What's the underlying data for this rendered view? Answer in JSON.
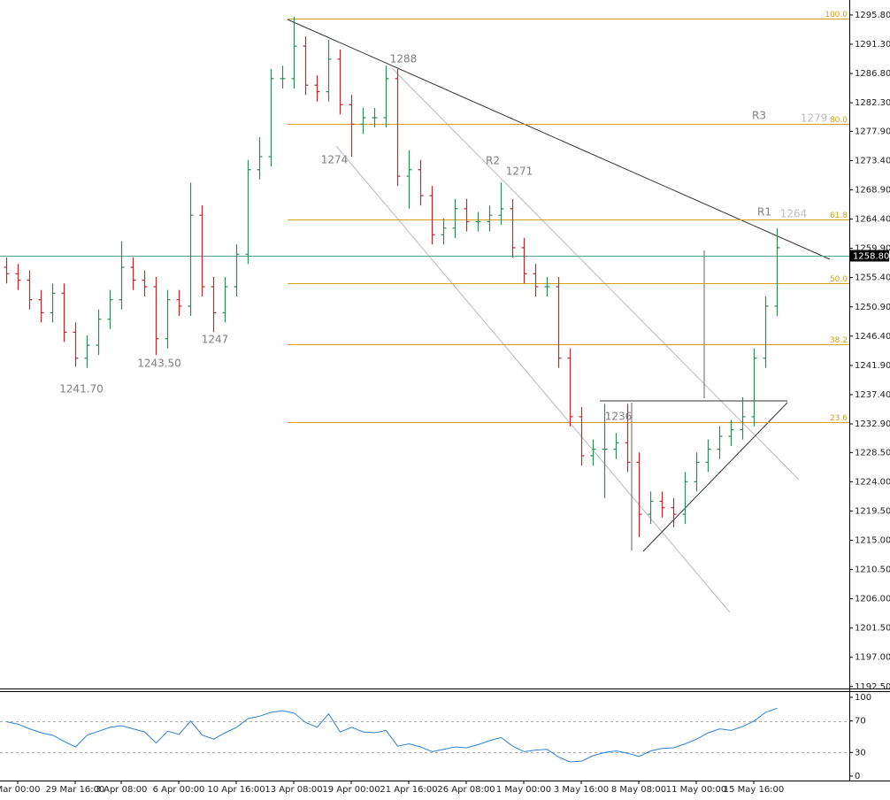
{
  "chart_data": {
    "type": "ohlc",
    "up_color": "#2e8b57",
    "down_color": "#c0282d",
    "categories": [
      null,
      "Mar 00:00",
      null,
      null,
      null,
      null,
      "29 Mar 16:00",
      null,
      null,
      null,
      "3 Apr 08:00",
      null,
      null,
      null,
      null,
      "6 Apr 00:00",
      null,
      null,
      null,
      null,
      "10 Apr 16:00",
      null,
      null,
      null,
      null,
      "13 Apr 08:00",
      null,
      null,
      null,
      null,
      "19 Apr 00:00",
      null,
      null,
      null,
      null,
      "21 Apr 16:00",
      null,
      null,
      null,
      null,
      "26 Apr 08:00",
      null,
      null,
      null,
      null,
      "1 May 00:00",
      null,
      null,
      null,
      null,
      "3 May 16:00",
      null,
      null,
      null,
      null,
      "8 May 08:00",
      null,
      null,
      null,
      null,
      "11 May 00:00",
      null,
      null,
      null,
      null,
      "15 May 16:00",
      null,
      null
    ],
    "open": [
      1257,
      1256,
      1255,
      1252,
      1250,
      1253,
      1247,
      1243,
      1245,
      1249,
      1252,
      1257,
      1255,
      1254,
      1246,
      1252,
      1251,
      1265,
      1254,
      1250,
      1254,
      1259,
      1272,
      1274,
      1286,
      1286,
      1291,
      1285,
      1284,
      1289,
      1282,
      1279,
      1280,
      1280,
      1286,
      1271,
      1272,
      1268,
      1262,
      1263,
      1266,
      1264,
      1264,
      1265,
      1266,
      1260,
      1256,
      1254,
      1254,
      1243,
      1234,
      1228,
      1229,
      1229,
      1230,
      1227,
      1219,
      1221,
      1220,
      1219,
      1224,
      1227,
      1229,
      1231,
      1232,
      1234,
      1243,
      1251
    ],
    "high": [
      1258.5,
      1257.5,
      1256.5,
      1253.5,
      1254.5,
      1254.5,
      1248.5,
      1246.5,
      1250.5,
      1253.5,
      1261,
      1258.5,
      1256.5,
      1255.5,
      1253.5,
      1253.5,
      1270,
      1266.5,
      1255.5,
      1255.5,
      1260.5,
      1273.5,
      1277,
      1287.5,
      1288,
      1295.5,
      1292.5,
      1286.5,
      1292,
      1290.5,
      1283.5,
      1281.5,
      1281.5,
      1288,
      1287.5,
      1275,
      1273.5,
      1269.5,
      1264.5,
      1267.5,
      1267.5,
      1265.5,
      1266.5,
      1270,
      1267.5,
      1261.5,
      1257.5,
      1255.5,
      1255.5,
      1244.5,
      1235.5,
      1230.5,
      1236,
      1231.5,
      1236,
      1228.5,
      1222.5,
      1222.5,
      1221.5,
      1225.5,
      1228.5,
      1230.5,
      1232.5,
      1233.5,
      1237,
      1244.5,
      1252.5,
      1263
    ],
    "low": [
      1254.5,
      1253.5,
      1250.5,
      1248.5,
      1248.5,
      1245.5,
      1241.7,
      1241.5,
      1243.5,
      1247.5,
      1250.5,
      1253.5,
      1252.5,
      1243.5,
      1244.5,
      1249.5,
      1249.5,
      1252.5,
      1247,
      1248.5,
      1252.5,
      1257.5,
      1270.5,
      1272.5,
      1284.5,
      1284.5,
      1283.5,
      1282.5,
      1282.5,
      1280.5,
      1274,
      1277.5,
      1278.5,
      1278.5,
      1269.5,
      1266,
      1266.5,
      1260.5,
      1260.5,
      1261.5,
      1262.5,
      1262.5,
      1262.5,
      1263.5,
      1258.5,
      1254.5,
      1252.5,
      1252.5,
      1241.5,
      1232.5,
      1226.5,
      1226.5,
      1221.5,
      1227.5,
      1225.5,
      1215.5,
      1217.5,
      1218.5,
      1217,
      1217.5,
      1222.5,
      1225.5,
      1227.5,
      1229.5,
      1230.5,
      1232.5,
      1241.5,
      1249.5
    ],
    "close": [
      1256,
      1255,
      1252,
      1250,
      1253,
      1247,
      1243,
      1245,
      1249,
      1252,
      1257,
      1255,
      1254,
      1246,
      1252,
      1251,
      1265,
      1254,
      1250,
      1254,
      1259,
      1272,
      1274,
      1286,
      1286,
      1291,
      1285,
      1284,
      1289,
      1282,
      1279,
      1280,
      1280,
      1286,
      1271,
      1272,
      1268,
      1262,
      1263,
      1266,
      1264,
      1264,
      1265,
      1266,
      1260,
      1256,
      1254,
      1254,
      1243,
      1234,
      1228,
      1229,
      1229,
      1230,
      1227,
      1219,
      1221,
      1220,
      1219,
      1224,
      1227,
      1229,
      1231,
      1232,
      1234,
      1243,
      1251,
      1260
    ],
    "ylim": [
      1192.2,
      1298.1
    ],
    "yticks": [
      {
        "value": 1295.8,
        "label": "1295.80"
      },
      {
        "value": 1291.3,
        "label": "1291.30"
      },
      {
        "value": 1286.8,
        "label": "1286.80"
      },
      {
        "value": 1282.3,
        "label": "1282.30"
      },
      {
        "value": 1277.9,
        "label": "1277.90"
      },
      {
        "value": 1273.4,
        "label": "1273.40"
      },
      {
        "value": 1268.9,
        "label": "1268.90"
      },
      {
        "value": 1264.4,
        "label": "1264.40"
      },
      {
        "value": 1259.9,
        "label": "1259.90"
      },
      {
        "value": 1255.4,
        "label": "1255.40"
      },
      {
        "value": 1250.9,
        "label": "1250.90"
      },
      {
        "value": 1246.4,
        "label": "1246.40"
      },
      {
        "value": 1241.9,
        "label": "1241.90"
      },
      {
        "value": 1237.4,
        "label": "1237.40"
      },
      {
        "value": 1232.9,
        "label": "1232.90"
      },
      {
        "value": 1228.5,
        "label": "1228.50"
      },
      {
        "value": 1224,
        "label": "1224.00"
      },
      {
        "value": 1219.5,
        "label": "1219.50"
      },
      {
        "value": 1215,
        "label": "1215.00"
      },
      {
        "value": 1210.5,
        "label": "1210.50"
      },
      {
        "value": 1206,
        "label": "1206.00"
      },
      {
        "value": 1201.5,
        "label": "1201.50"
      },
      {
        "value": 1197,
        "label": "1197.00"
      },
      {
        "value": 1192.5,
        "label": "1192.50"
      }
    ],
    "last_price": {
      "value": 1258.8,
      "label": "1258.80"
    },
    "fib_color": "#d4a017",
    "fib_levels": [
      {
        "label": "100.0",
        "price": 1295.3
      },
      {
        "label": "80.0",
        "price": 1279.1
      },
      {
        "label": "61.8",
        "price": 1264.4
      },
      {
        "label": "50.0",
        "price": 1254.6
      },
      {
        "label": "38.2",
        "price": 1245.1
      },
      {
        "label": "23.6",
        "price": 1233.2
      }
    ],
    "annotations": [
      {
        "text": "1241.70"
      },
      {
        "text": "1243.50"
      },
      {
        "text": "1247"
      },
      {
        "text": "1274"
      },
      {
        "text": "1288"
      },
      {
        "text": "R2"
      },
      {
        "text": "1271"
      },
      {
        "text": "1236"
      },
      {
        "text": "R3"
      },
      {
        "text": "1279"
      },
      {
        "text": "R1"
      },
      {
        "text": "1264"
      }
    ],
    "rsi": {
      "color": "#2f7fd8",
      "values": [
        69,
        66,
        60,
        55,
        52,
        44,
        37,
        52,
        57,
        62,
        64,
        60,
        56,
        42,
        57,
        53,
        70,
        52,
        47,
        55,
        62,
        73,
        76,
        81,
        83,
        80,
        68,
        62,
        79,
        56,
        62,
        56,
        55,
        58,
        38,
        41,
        37,
        31,
        34,
        37,
        36,
        40,
        45,
        49,
        38,
        31,
        33,
        34,
        24,
        18,
        19,
        26,
        30,
        32,
        29,
        25,
        32,
        35,
        36,
        41,
        47,
        55,
        60,
        58,
        63,
        70,
        81,
        86
      ],
      "ylim": [
        -5.6,
        106.7
      ],
      "yticks": [
        100,
        70,
        30,
        0
      ],
      "levels": [
        70,
        30
      ]
    }
  }
}
